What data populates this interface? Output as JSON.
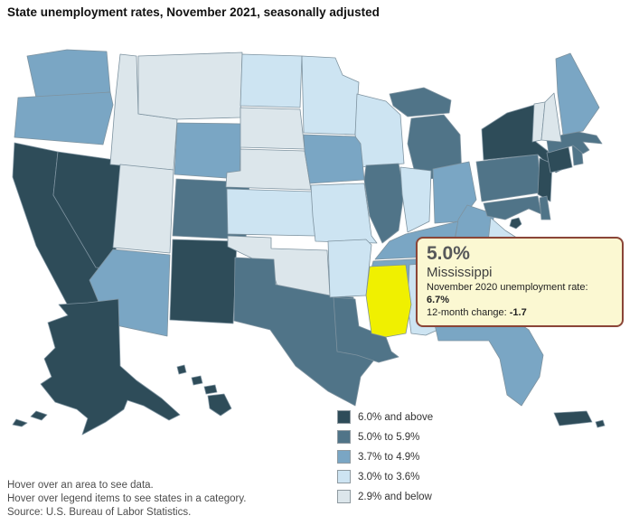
{
  "title": "State unemployment rates, November 2021, seasonally adjusted",
  "tooltip": {
    "value": "5.0%",
    "state_name": "Mississippi",
    "prev_label": "November 2020 unemployment rate: ",
    "prev_value": "6.7%",
    "change_label": "12-month change: ",
    "change_value": "-1.7"
  },
  "footer": {
    "lines": [
      "Hover over an area to see data.",
      "Hover over legend items to see states in a category.",
      "Source: U.S. Bureau of Labor Statistics."
    ]
  },
  "chart_data": {
    "type": "choropleth",
    "region": "United States incl. DC and Puerto Rico",
    "unit": "unemployment rate, percent",
    "border_color": "#7E93A0",
    "background_color": "#FFFFFF",
    "highlight": {
      "state": "MS",
      "color": "#F0F000",
      "value": "5.0%"
    },
    "categories": [
      {
        "label": "6.0% and above",
        "color": "#2E4C59",
        "states": [
          "CA",
          "NV",
          "NM",
          "NY",
          "NJ",
          "CT",
          "DC",
          "HI",
          "AK",
          "PR"
        ]
      },
      {
        "label": "5.0% to 5.9%",
        "color": "#507488",
        "states": [
          "CO",
          "TX",
          "LA",
          "MS",
          "IL",
          "MI",
          "PA",
          "MD",
          "DE",
          "MA",
          "RI"
        ]
      },
      {
        "label": "3.7% to 4.9%",
        "color": "#7AA6C4",
        "states": [
          "WA",
          "OR",
          "WY",
          "AZ",
          "IA",
          "OH",
          "KY",
          "WV",
          "ME",
          "FL",
          "NC",
          "SC",
          "TN"
        ]
      },
      {
        "label": "3.0% to 3.6%",
        "color": "#CDE4F2",
        "states": [
          "ND",
          "MN",
          "WI",
          "KS",
          "MO",
          "IN",
          "VA",
          "AR",
          "AL",
          "GA"
        ]
      },
      {
        "label": "2.9% and below",
        "color": "#DCE6EB",
        "states": [
          "MT",
          "ID",
          "UT",
          "SD",
          "NE",
          "OK",
          "NH",
          "VT"
        ]
      }
    ]
  }
}
